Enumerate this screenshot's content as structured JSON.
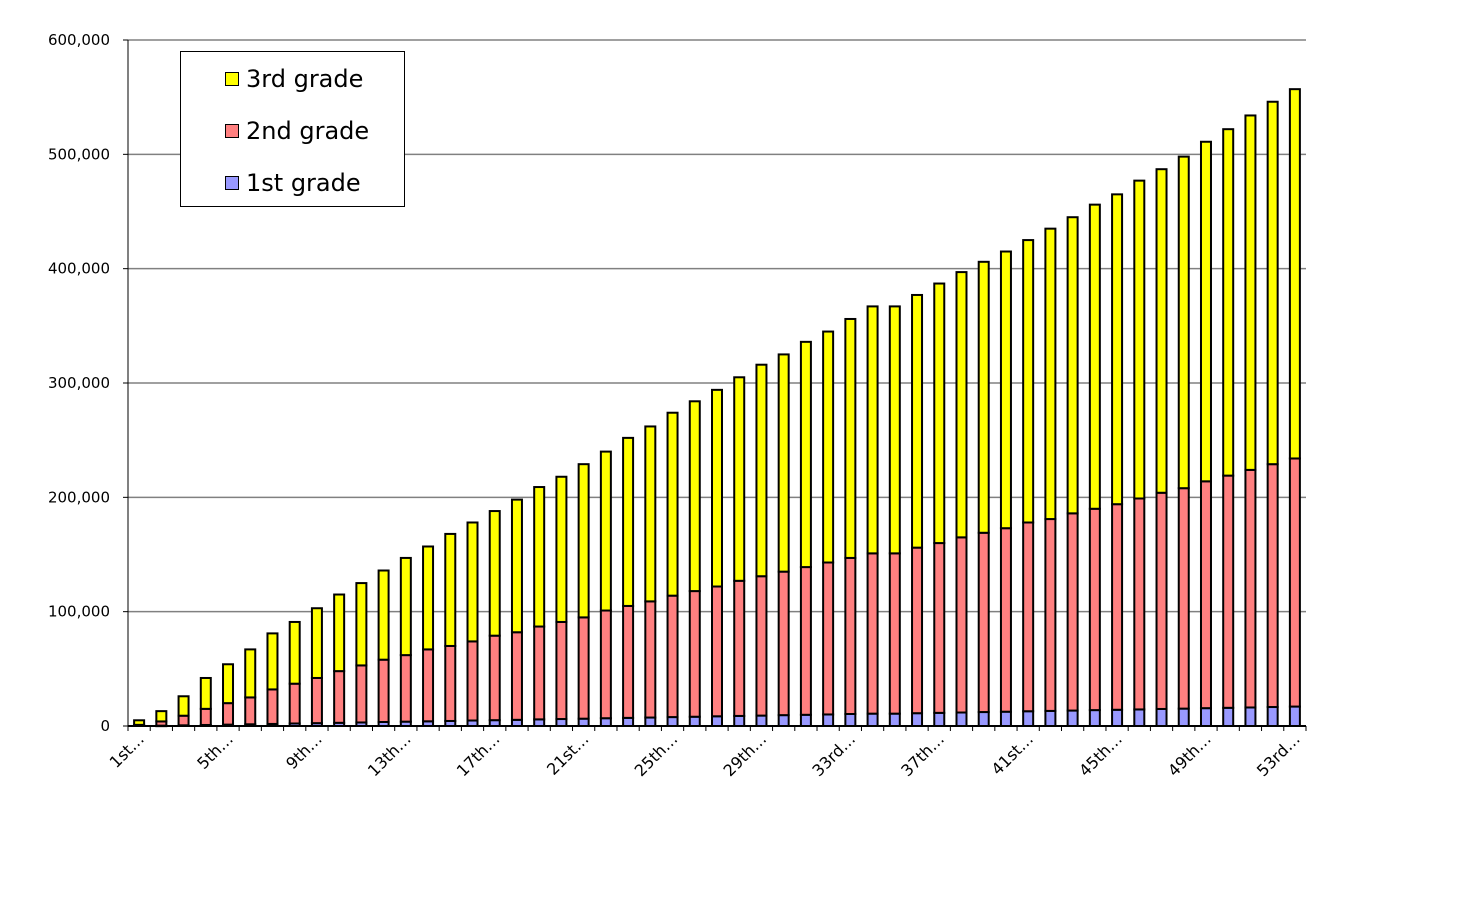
{
  "chart_data": {
    "type": "bar",
    "stacked": true,
    "title": "",
    "xlabel": "",
    "ylabel": "",
    "ylim": [
      0,
      600000
    ],
    "yticks": [
      0,
      100000,
      200000,
      300000,
      400000,
      500000,
      600000
    ],
    "ytick_labels": [
      "0",
      "100,000",
      "200,000",
      "300,000",
      "400,000",
      "500,000",
      "600,000"
    ],
    "grid": true,
    "legend_placement": "top-left",
    "category_count": 53,
    "tick_label_every": 4,
    "tick_labels": [
      "1st…",
      "5th…",
      "9th…",
      "13th…",
      "17th…",
      "21st…",
      "25th…",
      "29th…",
      "33rd…",
      "37th…",
      "41st…",
      "45th…",
      "49th…",
      "53rd…"
    ],
    "series": [
      {
        "name": "1st grade",
        "color": "#9999FF",
        "values": [
          0,
          300,
          600,
          900,
          1200,
          1500,
          1800,
          2200,
          2500,
          2800,
          3100,
          3500,
          3800,
          4100,
          4400,
          4800,
          5100,
          5400,
          5800,
          6100,
          6400,
          6800,
          7100,
          7400,
          7800,
          8100,
          8500,
          8800,
          9100,
          9500,
          9800,
          10100,
          10500,
          10800,
          10800,
          11200,
          11500,
          11800,
          12200,
          12500,
          12900,
          13200,
          13500,
          13900,
          14200,
          14500,
          14900,
          15200,
          15600,
          15900,
          16200,
          16600,
          17000
        ]
      },
      {
        "name": "2nd grade",
        "color": "#FF8080",
        "values": [
          1000,
          3700,
          8400,
          14100,
          18800,
          23500,
          30200,
          34800,
          39500,
          45200,
          49900,
          54500,
          58200,
          62900,
          65600,
          69200,
          73900,
          76600,
          81200,
          84900,
          88600,
          94200,
          97900,
          101600,
          106200,
          109900,
          113500,
          118200,
          121900,
          125500,
          129200,
          132900,
          136500,
          140200,
          140200,
          144800,
          148500,
          153200,
          156800,
          160500,
          165100,
          167800,
          172500,
          176100,
          179800,
          184500,
          189100,
          192800,
          198400,
          203100,
          207800,
          212400,
          217000
        ]
      },
      {
        "name": "3rd grade",
        "color": "#FFFF00",
        "values": [
          4000,
          9000,
          17000,
          27000,
          34000,
          42000,
          49000,
          54000,
          61000,
          67000,
          72000,
          78000,
          85000,
          90000,
          98000,
          104000,
          109000,
          116000,
          122000,
          127000,
          134000,
          139000,
          147000,
          153000,
          160000,
          166000,
          172000,
          178000,
          185000,
          190000,
          197000,
          202000,
          209000,
          216000,
          216000,
          221000,
          227000,
          232000,
          237000,
          242000,
          247000,
          254000,
          259000,
          266000,
          271000,
          278000,
          283000,
          290000,
          297000,
          303000,
          310000,
          317000,
          323000
        ]
      }
    ],
    "legend_order": [
      "3rd grade",
      "2nd grade",
      "1st grade"
    ]
  }
}
